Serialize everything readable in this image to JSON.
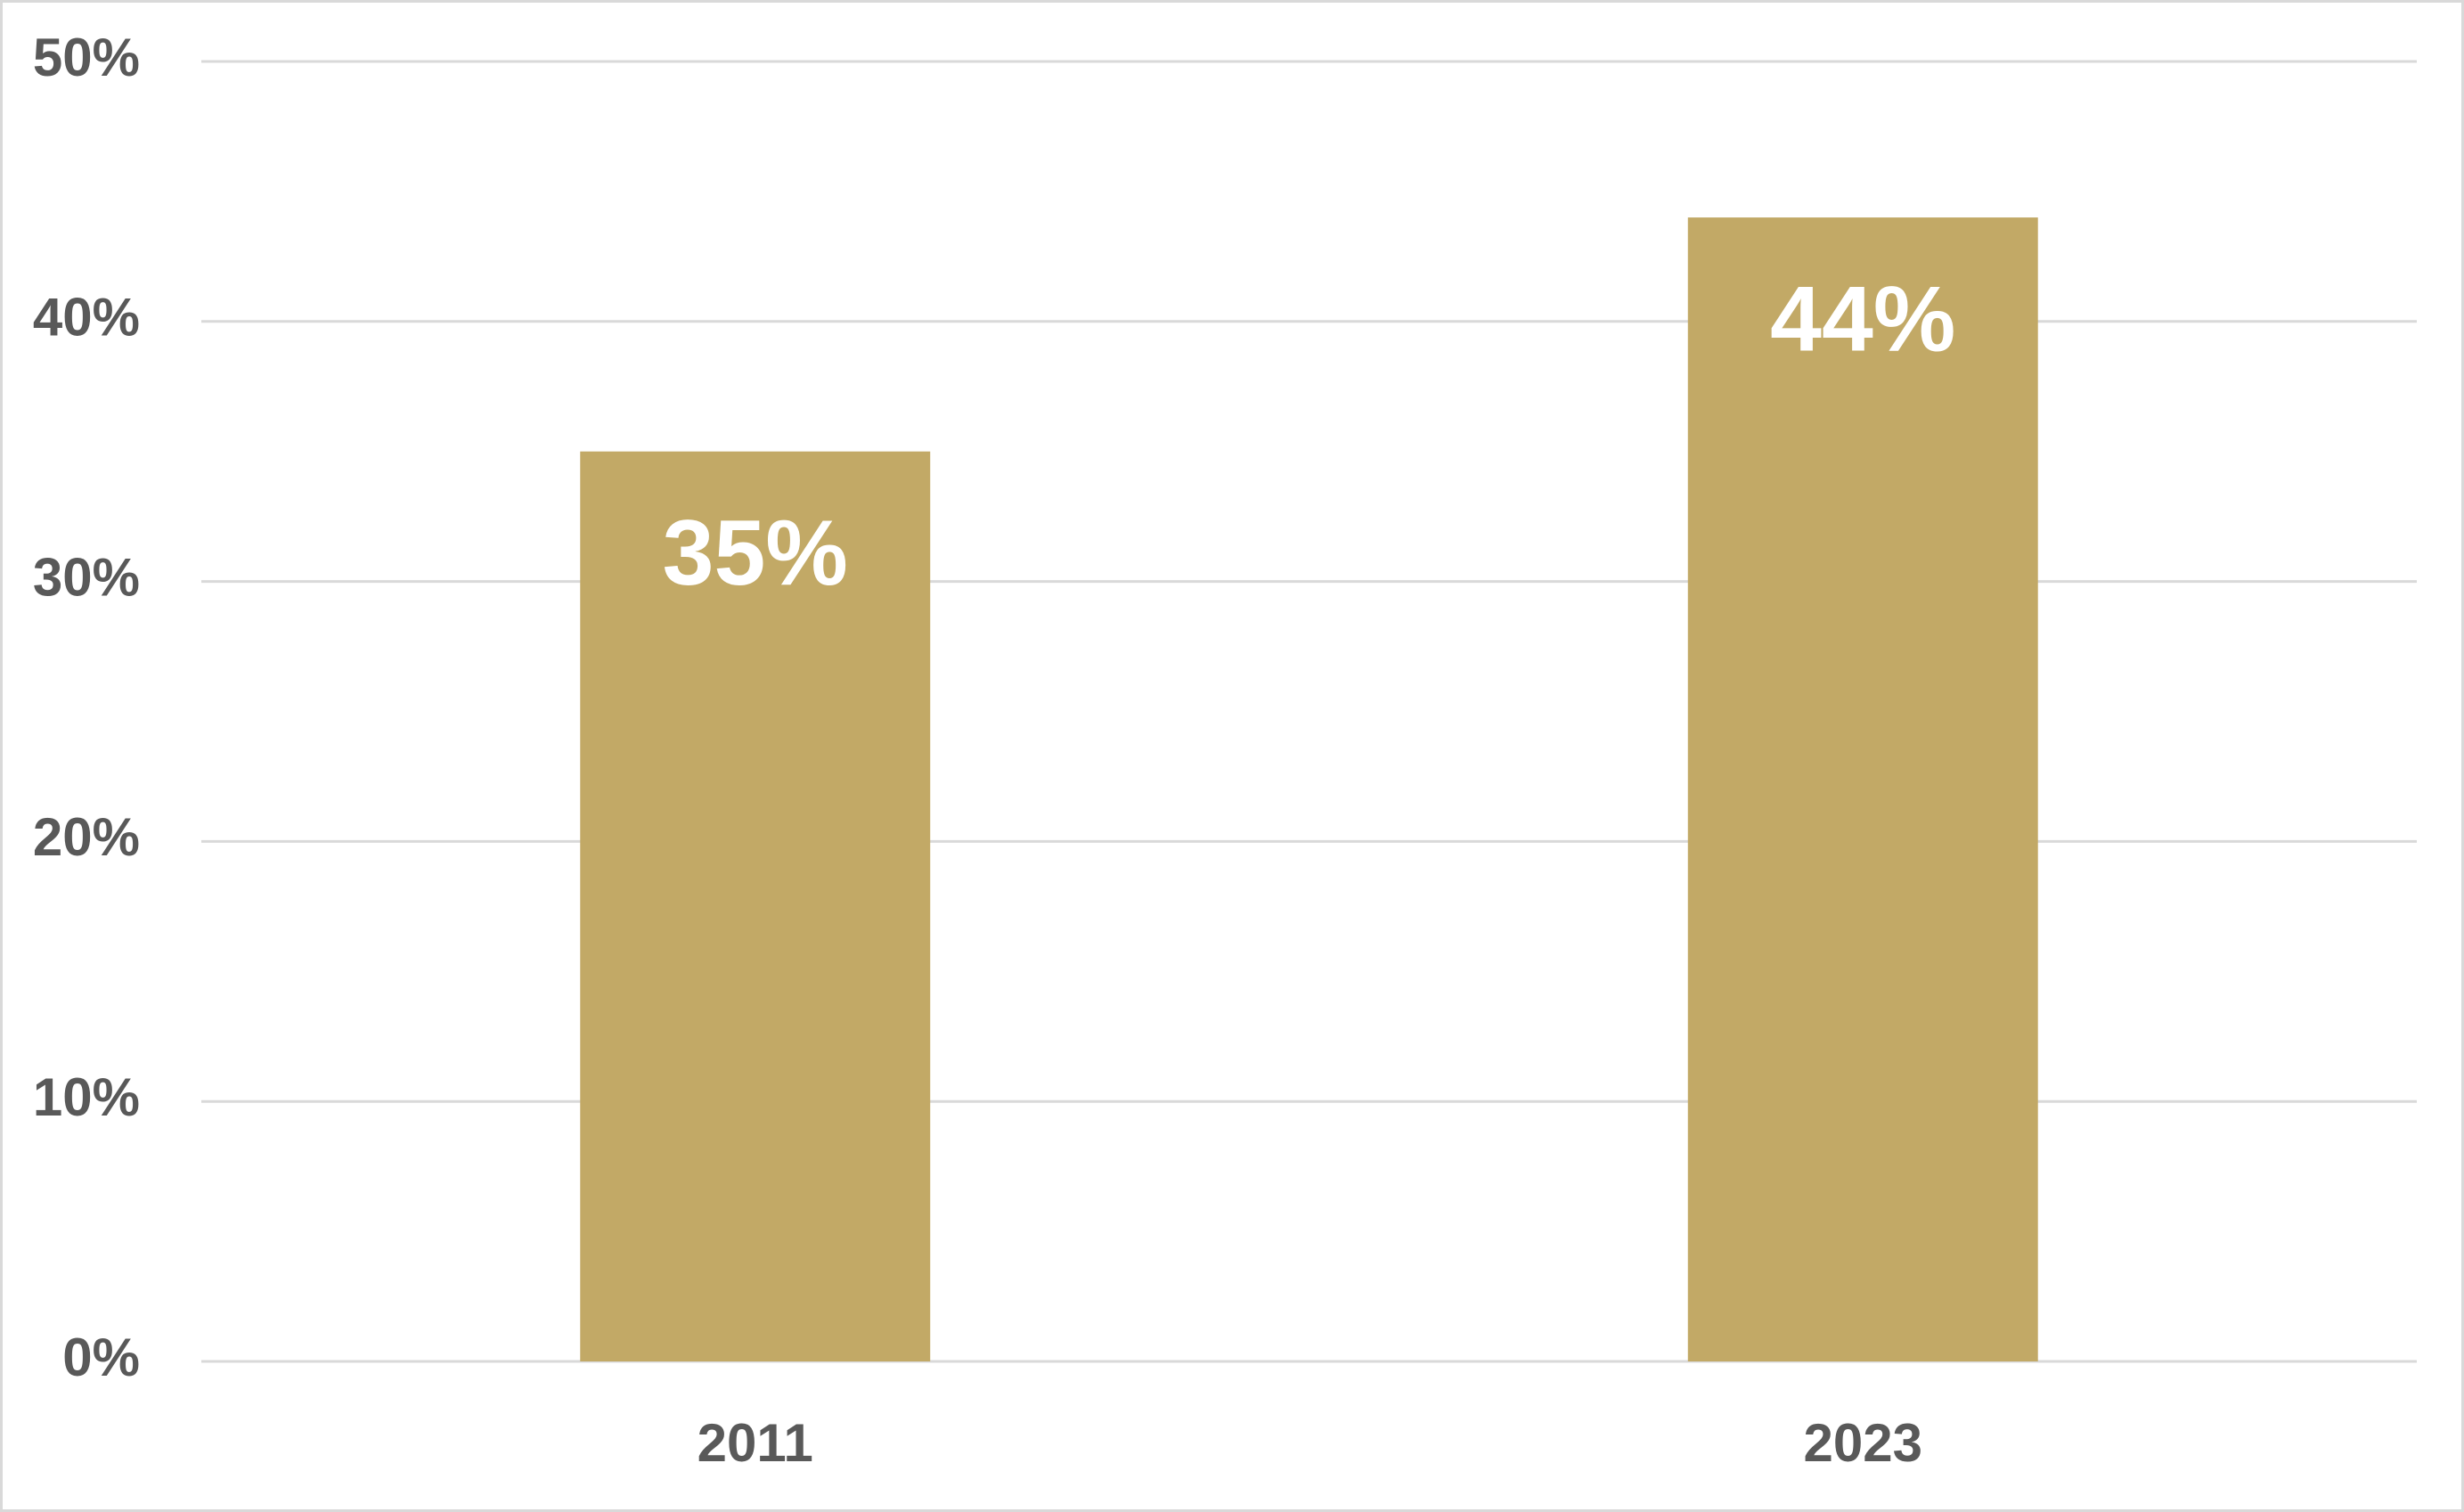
{
  "chart_data": {
    "type": "bar",
    "categories": [
      "2011",
      "2023"
    ],
    "values": [
      35,
      44
    ],
    "value_labels": [
      "35%",
      "44%"
    ],
    "color": "#c2a966",
    "ylim": [
      0,
      50
    ],
    "yticks": [
      {
        "value": 0,
        "label": "0%"
      },
      {
        "value": 10,
        "label": "10%"
      },
      {
        "value": 20,
        "label": "20%"
      },
      {
        "value": 30,
        "label": "30%"
      },
      {
        "value": 40,
        "label": "40%"
      },
      {
        "value": 50,
        "label": "50%"
      }
    ],
    "grid": true
  }
}
